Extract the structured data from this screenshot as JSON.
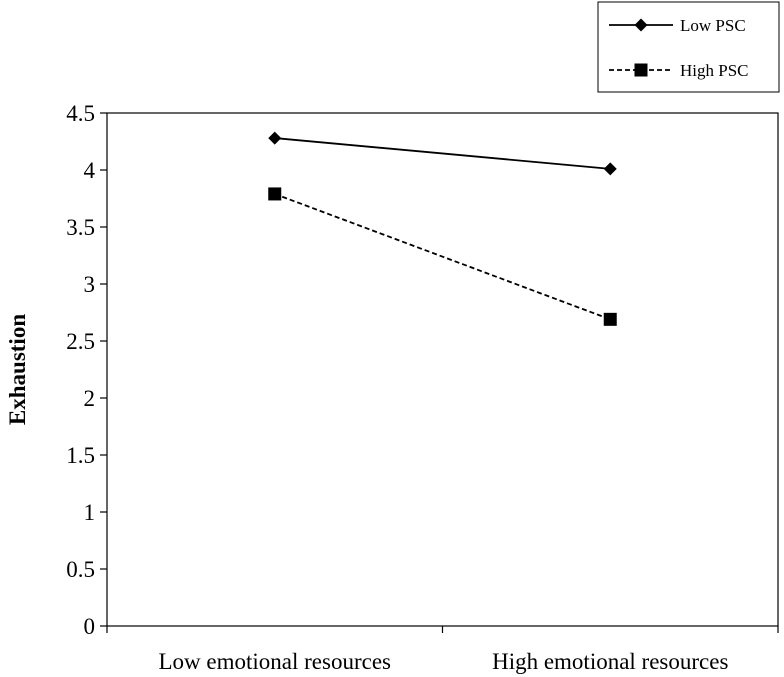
{
  "chart_data": {
    "type": "line",
    "title": "",
    "xlabel": "",
    "ylabel": "Exhaustion",
    "categories": [
      "Low emotional resources",
      "High emotional resources"
    ],
    "ylim": [
      0,
      4.5
    ],
    "yticks": [
      0,
      0.5,
      1,
      1.5,
      2,
      2.5,
      3,
      3.5,
      4,
      4.5
    ],
    "ytick_labels": [
      "0",
      "0.5",
      "1",
      "1.5",
      "2",
      "2.5",
      "3",
      "3.5",
      "4",
      "4.5"
    ],
    "grid": false,
    "legend_position": "top-right",
    "series": [
      {
        "name": "Low PSC",
        "values": [
          4.28,
          4.01
        ],
        "line_style": "solid",
        "marker": "diamond",
        "color": "#000000"
      },
      {
        "name": "High PSC",
        "values": [
          3.79,
          2.69
        ],
        "line_style": "dashed",
        "marker": "square",
        "color": "#000000"
      }
    ]
  }
}
